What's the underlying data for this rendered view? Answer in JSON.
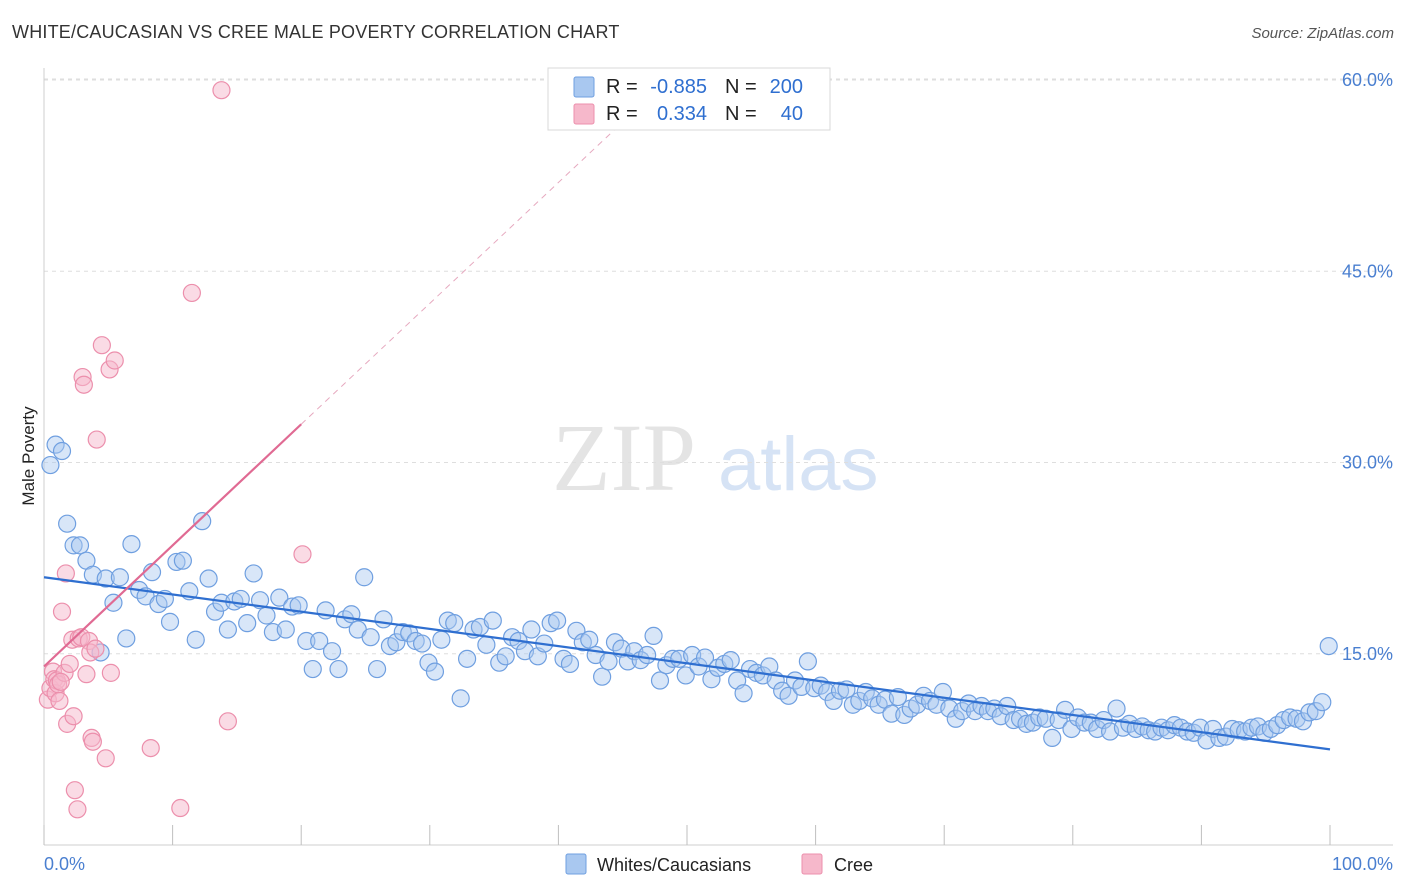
{
  "title": "WHITE/CAUCASIAN VS CREE MALE POVERTY CORRELATION CHART",
  "source": "Source: ZipAtlas.com",
  "watermark": {
    "zip": "ZIP",
    "atlas": "atlas"
  },
  "colors": {
    "white_fill": "#a9c8f0",
    "white_stroke": "#6f9fe0",
    "white_line": "#2f6fd0",
    "cree_fill": "#f6b8cb",
    "cree_stroke": "#ec8fac",
    "cree_line": "#e06a93",
    "axis_text": "#4a7fd0"
  },
  "legend": {
    "rows": [
      {
        "r_label": "R =",
        "r_value": "-0.885",
        "n_label": "N =",
        "n_value": "200"
      },
      {
        "r_label": "R =",
        "r_value": "0.334",
        "n_label": "N =",
        "n_value": "40"
      }
    ]
  },
  "bottom_legend": [
    "Whites/Caucasians",
    "Cree"
  ],
  "chart_data": {
    "type": "scatter",
    "xlabel": "",
    "ylabel": "Male Poverty",
    "xlim": [
      0,
      100
    ],
    "ylim": [
      0,
      60
    ],
    "x_ticks": [
      "0.0%",
      "100.0%"
    ],
    "y_ticks": [
      "15.0%",
      "30.0%",
      "45.0%",
      "60.0%"
    ],
    "y_tick_values": [
      15,
      30,
      45,
      60
    ],
    "grid": true,
    "legend_position": "top-center",
    "series": [
      {
        "name": "Whites/Caucasians",
        "trend": {
          "x": [
            0,
            100
          ],
          "y": [
            21.0,
            7.5
          ]
        },
        "points": [
          [
            0.5,
            29.8
          ],
          [
            0.9,
            31.4
          ],
          [
            1.4,
            30.9
          ],
          [
            1.8,
            25.2
          ],
          [
            2.3,
            23.5
          ],
          [
            2.8,
            23.5
          ],
          [
            3.3,
            22.3
          ],
          [
            3.8,
            21.2
          ],
          [
            4.4,
            15.1
          ],
          [
            4.8,
            20.9
          ],
          [
            5.4,
            19.0
          ],
          [
            5.9,
            21.0
          ],
          [
            6.4,
            16.2
          ],
          [
            6.8,
            23.6
          ],
          [
            7.4,
            20.0
          ],
          [
            7.9,
            19.5
          ],
          [
            8.4,
            21.4
          ],
          [
            8.9,
            18.9
          ],
          [
            9.4,
            19.3
          ],
          [
            9.8,
            17.5
          ],
          [
            10.3,
            22.2
          ],
          [
            10.8,
            22.3
          ],
          [
            11.3,
            19.9
          ],
          [
            11.8,
            16.1
          ],
          [
            12.3,
            25.4
          ],
          [
            12.8,
            20.9
          ],
          [
            13.3,
            18.3
          ],
          [
            13.8,
            19.0
          ],
          [
            14.3,
            16.9
          ],
          [
            14.8,
            19.1
          ],
          [
            15.3,
            19.3
          ],
          [
            15.8,
            17.4
          ],
          [
            16.3,
            21.3
          ],
          [
            16.8,
            19.2
          ],
          [
            17.3,
            18.0
          ],
          [
            17.8,
            16.7
          ],
          [
            18.3,
            19.4
          ],
          [
            18.8,
            16.9
          ],
          [
            19.3,
            18.7
          ],
          [
            19.8,
            18.8
          ],
          [
            20.4,
            16.0
          ],
          [
            20.9,
            13.8
          ],
          [
            21.4,
            16.0
          ],
          [
            21.9,
            18.4
          ],
          [
            22.4,
            15.2
          ],
          [
            22.9,
            13.8
          ],
          [
            23.4,
            17.7
          ],
          [
            23.9,
            18.1
          ],
          [
            24.4,
            16.9
          ],
          [
            24.9,
            21.0
          ],
          [
            25.4,
            16.3
          ],
          [
            25.9,
            13.8
          ],
          [
            26.4,
            17.7
          ],
          [
            26.9,
            15.6
          ],
          [
            27.4,
            15.9
          ],
          [
            27.9,
            16.7
          ],
          [
            28.4,
            16.6
          ],
          [
            28.9,
            16.0
          ],
          [
            29.4,
            15.8
          ],
          [
            29.9,
            14.3
          ],
          [
            30.4,
            13.6
          ],
          [
            30.9,
            16.1
          ],
          [
            31.4,
            17.6
          ],
          [
            31.9,
            17.4
          ],
          [
            32.4,
            11.5
          ],
          [
            32.9,
            14.6
          ],
          [
            33.4,
            16.9
          ],
          [
            33.9,
            17.1
          ],
          [
            34.4,
            15.7
          ],
          [
            34.9,
            17.6
          ],
          [
            35.4,
            14.3
          ],
          [
            35.9,
            14.8
          ],
          [
            36.4,
            16.3
          ],
          [
            36.9,
            16.0
          ],
          [
            37.4,
            15.2
          ],
          [
            37.9,
            16.9
          ],
          [
            38.4,
            14.8
          ],
          [
            38.9,
            15.8
          ],
          [
            39.4,
            17.4
          ],
          [
            39.9,
            17.6
          ],
          [
            40.4,
            14.6
          ],
          [
            40.9,
            14.2
          ],
          [
            41.4,
            16.8
          ],
          [
            41.9,
            15.9
          ],
          [
            42.4,
            16.1
          ],
          [
            42.9,
            14.9
          ],
          [
            43.4,
            13.2
          ],
          [
            43.9,
            14.4
          ],
          [
            44.4,
            15.9
          ],
          [
            44.9,
            15.4
          ],
          [
            45.4,
            14.4
          ],
          [
            45.9,
            15.2
          ],
          [
            46.4,
            14.5
          ],
          [
            46.9,
            14.9
          ],
          [
            47.4,
            16.4
          ],
          [
            47.9,
            12.9
          ],
          [
            48.4,
            14.1
          ],
          [
            48.9,
            14.6
          ],
          [
            49.4,
            14.6
          ],
          [
            49.9,
            13.3
          ],
          [
            50.4,
            14.9
          ],
          [
            50.9,
            14.0
          ],
          [
            51.4,
            14.7
          ],
          [
            51.9,
            13.0
          ],
          [
            52.4,
            13.9
          ],
          [
            52.9,
            14.2
          ],
          [
            53.4,
            14.5
          ],
          [
            53.9,
            12.9
          ],
          [
            54.4,
            11.9
          ],
          [
            54.9,
            13.8
          ],
          [
            55.4,
            13.5
          ],
          [
            55.9,
            13.3
          ],
          [
            56.4,
            14.0
          ],
          [
            56.9,
            12.9
          ],
          [
            57.4,
            12.1
          ],
          [
            57.9,
            11.7
          ],
          [
            58.4,
            12.9
          ],
          [
            58.9,
            12.4
          ],
          [
            59.4,
            14.4
          ],
          [
            59.9,
            12.3
          ],
          [
            60.4,
            12.5
          ],
          [
            60.9,
            12.0
          ],
          [
            61.4,
            11.3
          ],
          [
            61.9,
            12.1
          ],
          [
            62.4,
            12.2
          ],
          [
            62.9,
            11.0
          ],
          [
            63.4,
            11.3
          ],
          [
            63.9,
            12.0
          ],
          [
            64.4,
            11.5
          ],
          [
            64.9,
            11.0
          ],
          [
            65.4,
            11.4
          ],
          [
            65.9,
            10.3
          ],
          [
            66.4,
            11.6
          ],
          [
            66.9,
            10.2
          ],
          [
            67.4,
            10.7
          ],
          [
            67.9,
            11.0
          ],
          [
            68.4,
            11.7
          ],
          [
            68.9,
            11.3
          ],
          [
            69.4,
            11.0
          ],
          [
            69.9,
            12.0
          ],
          [
            70.4,
            10.7
          ],
          [
            70.9,
            9.9
          ],
          [
            71.4,
            10.5
          ],
          [
            71.9,
            11.1
          ],
          [
            72.4,
            10.5
          ],
          [
            72.9,
            10.9
          ],
          [
            73.4,
            10.5
          ],
          [
            73.9,
            10.7
          ],
          [
            74.4,
            10.1
          ],
          [
            74.9,
            10.9
          ],
          [
            75.4,
            9.8
          ],
          [
            75.9,
            9.9
          ],
          [
            76.4,
            9.5
          ],
          [
            76.9,
            9.6
          ],
          [
            77.4,
            10.0
          ],
          [
            77.9,
            9.9
          ],
          [
            78.4,
            8.4
          ],
          [
            78.9,
            9.8
          ],
          [
            79.4,
            10.6
          ],
          [
            79.9,
            9.1
          ],
          [
            80.4,
            10.0
          ],
          [
            80.9,
            9.6
          ],
          [
            81.4,
            9.6
          ],
          [
            81.9,
            9.1
          ],
          [
            82.4,
            9.8
          ],
          [
            82.9,
            8.9
          ],
          [
            83.4,
            10.7
          ],
          [
            83.9,
            9.2
          ],
          [
            84.4,
            9.5
          ],
          [
            84.9,
            9.1
          ],
          [
            85.4,
            9.3
          ],
          [
            85.9,
            9.0
          ],
          [
            86.4,
            8.9
          ],
          [
            86.9,
            9.2
          ],
          [
            87.4,
            9.0
          ],
          [
            87.9,
            9.4
          ],
          [
            88.4,
            9.2
          ],
          [
            88.9,
            8.9
          ],
          [
            89.4,
            8.8
          ],
          [
            89.9,
            9.2
          ],
          [
            90.4,
            8.2
          ],
          [
            90.9,
            9.1
          ],
          [
            91.4,
            8.4
          ],
          [
            91.9,
            8.5
          ],
          [
            92.4,
            9.1
          ],
          [
            92.9,
            9.0
          ],
          [
            93.4,
            8.9
          ],
          [
            93.9,
            9.2
          ],
          [
            94.4,
            9.3
          ],
          [
            94.9,
            8.8
          ],
          [
            95.4,
            9.1
          ],
          [
            95.9,
            9.4
          ],
          [
            96.4,
            9.8
          ],
          [
            96.9,
            10.0
          ],
          [
            97.4,
            9.9
          ],
          [
            97.9,
            9.7
          ],
          [
            98.4,
            10.4
          ],
          [
            98.9,
            10.5
          ],
          [
            99.4,
            11.2
          ],
          [
            99.9,
            15.6
          ]
        ]
      },
      {
        "name": "Cree",
        "trend": {
          "x": [
            0,
            20
          ],
          "y": [
            14.0,
            33.0
          ]
        },
        "trend_dashed_to": {
          "x": 45,
          "y": 56.7
        },
        "points": [
          [
            0.3,
            11.4
          ],
          [
            0.5,
            12.3
          ],
          [
            0.7,
            13.6
          ],
          [
            0.8,
            13.0
          ],
          [
            0.9,
            11.9
          ],
          [
            1.0,
            12.9
          ],
          [
            1.1,
            12.6
          ],
          [
            1.2,
            11.3
          ],
          [
            1.4,
            18.3
          ],
          [
            1.6,
            13.5
          ],
          [
            1.7,
            21.3
          ],
          [
            1.8,
            9.5
          ],
          [
            2.0,
            14.2
          ],
          [
            2.2,
            16.1
          ],
          [
            2.3,
            10.1
          ],
          [
            2.4,
            4.3
          ],
          [
            2.6,
            2.8
          ],
          [
            2.7,
            16.2
          ],
          [
            2.9,
            16.3
          ],
          [
            3.0,
            36.7
          ],
          [
            3.1,
            36.1
          ],
          [
            3.3,
            13.4
          ],
          [
            3.5,
            16.0
          ],
          [
            3.6,
            15.1
          ],
          [
            3.7,
            8.4
          ],
          [
            3.8,
            8.1
          ],
          [
            4.0,
            15.4
          ],
          [
            4.1,
            31.8
          ],
          [
            4.5,
            39.2
          ],
          [
            4.8,
            6.8
          ],
          [
            5.1,
            37.3
          ],
          [
            5.2,
            13.5
          ],
          [
            5.5,
            38.0
          ],
          [
            8.3,
            7.6
          ],
          [
            10.6,
            2.9
          ],
          [
            11.5,
            43.3
          ],
          [
            13.8,
            59.2
          ],
          [
            14.3,
            9.7
          ],
          [
            20.1,
            22.8
          ],
          [
            1.3,
            12.8
          ]
        ]
      }
    ]
  }
}
